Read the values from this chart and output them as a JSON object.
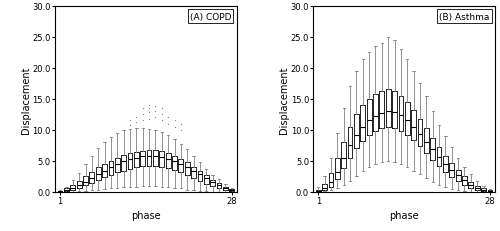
{
  "title_A": "(A) COPD",
  "title_B": "(B) Asthma",
  "xlabel": "phase",
  "ylabel": "Displacement",
  "ylim": [
    0,
    30
  ],
  "yticks": [
    0.0,
    5.0,
    10.0,
    15.0,
    20.0,
    25.0,
    30.0
  ],
  "n_phases": 28,
  "box_color": "#000000",
  "whisker_color": "#808080",
  "outlier_color": "#808080",
  "median_color": "#000000",
  "copd_medians": [
    0.05,
    0.2,
    0.5,
    1.0,
    1.6,
    2.2,
    2.8,
    3.4,
    4.0,
    4.5,
    4.9,
    5.2,
    5.5,
    5.7,
    5.8,
    5.8,
    5.6,
    5.3,
    5.0,
    4.5,
    4.0,
    3.4,
    2.8,
    2.2,
    1.6,
    1.1,
    0.6,
    0.2
  ],
  "copd_q1": [
    0.02,
    0.1,
    0.3,
    0.6,
    1.0,
    1.4,
    1.9,
    2.3,
    2.7,
    3.1,
    3.4,
    3.7,
    3.9,
    4.1,
    4.2,
    4.2,
    4.0,
    3.8,
    3.5,
    3.1,
    2.7,
    2.2,
    1.7,
    1.3,
    0.9,
    0.6,
    0.3,
    0.1
  ],
  "copd_q3": [
    0.1,
    0.5,
    1.0,
    1.7,
    2.5,
    3.2,
    3.9,
    4.5,
    5.0,
    5.5,
    5.9,
    6.2,
    6.4,
    6.6,
    6.7,
    6.7,
    6.5,
    6.2,
    5.8,
    5.3,
    4.7,
    4.0,
    3.3,
    2.6,
    1.9,
    1.4,
    0.8,
    0.4
  ],
  "copd_whislo": [
    0.0,
    0.0,
    0.0,
    0.05,
    0.1,
    0.2,
    0.3,
    0.4,
    0.5,
    0.6,
    0.7,
    0.8,
    0.8,
    0.9,
    0.9,
    0.9,
    0.8,
    0.7,
    0.6,
    0.5,
    0.3,
    0.2,
    0.1,
    0.05,
    0.0,
    0.0,
    0.0,
    0.0
  ],
  "copd_whishi": [
    0.2,
    0.8,
    1.8,
    3.0,
    4.5,
    5.8,
    7.0,
    8.0,
    8.8,
    9.5,
    9.9,
    10.1,
    10.2,
    10.2,
    10.1,
    10.0,
    9.7,
    9.2,
    8.5,
    7.7,
    6.8,
    5.7,
    4.7,
    3.7,
    2.7,
    2.0,
    1.2,
    0.6
  ],
  "copd_fliers_x": [
    12,
    12,
    13,
    13,
    14,
    14,
    14,
    15,
    15,
    15,
    15,
    16,
    16,
    16,
    17,
    17,
    17,
    18,
    18,
    19,
    19,
    20,
    20
  ],
  "copd_fliers_y": [
    10.8,
    11.5,
    11.2,
    12.0,
    11.5,
    12.5,
    13.5,
    11.8,
    12.8,
    13.5,
    14.0,
    12.0,
    13.0,
    13.8,
    11.5,
    12.5,
    13.5,
    11.0,
    12.0,
    10.5,
    11.5,
    10.0,
    11.0
  ],
  "asthma_medians": [
    0.1,
    0.5,
    1.5,
    3.2,
    5.5,
    7.5,
    9.2,
    10.5,
    11.5,
    12.2,
    12.7,
    13.0,
    12.8,
    12.3,
    11.5,
    10.5,
    9.3,
    8.0,
    6.8,
    5.6,
    4.5,
    3.5,
    2.6,
    1.8,
    1.1,
    0.6,
    0.3,
    0.1
  ],
  "asthma_q1": [
    0.05,
    0.2,
    0.8,
    2.0,
    3.8,
    5.5,
    7.0,
    8.2,
    9.2,
    9.8,
    10.2,
    10.5,
    10.3,
    9.8,
    9.2,
    8.3,
    7.3,
    6.2,
    5.1,
    4.1,
    3.2,
    2.4,
    1.7,
    1.1,
    0.6,
    0.3,
    0.1,
    0.05
  ],
  "asthma_q3": [
    0.3,
    1.2,
    3.0,
    5.5,
    8.0,
    10.5,
    12.5,
    14.0,
    15.0,
    15.8,
    16.2,
    16.5,
    16.2,
    15.5,
    14.5,
    13.2,
    11.8,
    10.2,
    8.7,
    7.2,
    5.8,
    4.6,
    3.5,
    2.5,
    1.6,
    0.9,
    0.5,
    0.2
  ],
  "asthma_whislo": [
    0.0,
    0.05,
    0.2,
    0.5,
    1.0,
    1.7,
    2.5,
    3.3,
    4.0,
    4.5,
    4.8,
    5.0,
    4.8,
    4.5,
    4.0,
    3.4,
    2.8,
    2.2,
    1.6,
    1.1,
    0.7,
    0.4,
    0.2,
    0.1,
    0.0,
    0.0,
    0.0,
    0.0
  ],
  "asthma_whishi": [
    0.7,
    2.5,
    5.5,
    9.5,
    13.5,
    17.0,
    19.5,
    21.5,
    22.5,
    23.5,
    24.0,
    25.0,
    24.5,
    23.0,
    21.5,
    19.5,
    17.5,
    15.5,
    13.0,
    10.8,
    9.0,
    7.2,
    5.5,
    4.0,
    2.8,
    1.7,
    0.9,
    0.4
  ],
  "asthma_fliers_x": [],
  "asthma_fliers_y": []
}
